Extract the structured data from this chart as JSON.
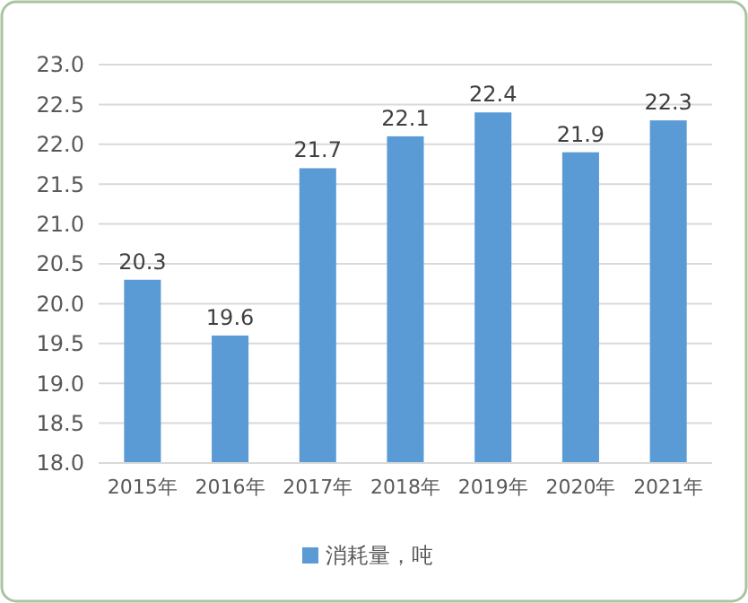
{
  "chart_data": {
    "type": "bar",
    "categories": [
      "2015年",
      "2016年",
      "2017年",
      "2018年",
      "2019年",
      "2020年",
      "2021年"
    ],
    "series": [
      {
        "name": "消耗量，吨",
        "color": "#5b9bd5",
        "values": [
          20.3,
          19.6,
          21.7,
          22.1,
          22.4,
          21.9,
          22.3
        ]
      }
    ],
    "ylim": [
      18,
      23
    ],
    "yticks": [
      {
        "value": 18,
        "label": "18.0"
      },
      {
        "value": 18.5,
        "label": "18.5"
      },
      {
        "value": 19,
        "label": "19.0"
      },
      {
        "value": 19.5,
        "label": "19.5"
      },
      {
        "value": 20,
        "label": "20.0"
      },
      {
        "value": 20.5,
        "label": "20.5"
      },
      {
        "value": 21,
        "label": "21.0"
      },
      {
        "value": 21.5,
        "label": "21.5"
      },
      {
        "value": 22,
        "label": "22.0"
      },
      {
        "value": 22.5,
        "label": "22.5"
      },
      {
        "value": 23,
        "label": "23.0"
      }
    ],
    "grid": "y",
    "legend": "bottom",
    "data_labels": true
  }
}
